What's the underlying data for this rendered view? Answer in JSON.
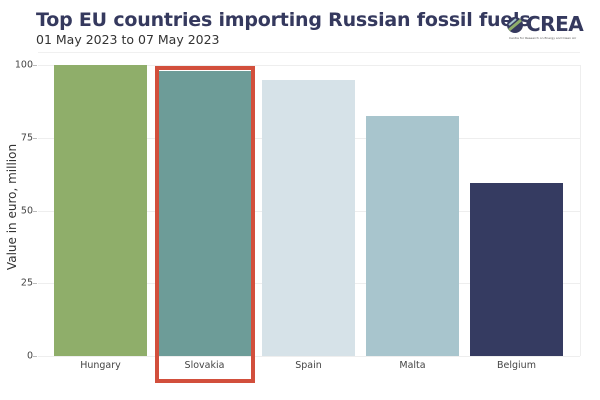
{
  "header": {
    "title": "Top EU countries importing Russian fossil fuels",
    "subtitle": "01 May 2023 to 07 May 2023",
    "logo_text": "CREA",
    "logo_subtext": "Centre for Research on Energy and Clean Air"
  },
  "axis": {
    "ylabel": "Value in euro, million",
    "yticks": [
      "0",
      "25",
      "50",
      "75",
      "100"
    ]
  },
  "highlight": {
    "country": "Slovakia",
    "color": "#d24f3c"
  },
  "chart_data": {
    "type": "bar",
    "title": "Top EU countries importing Russian fossil fuels",
    "subtitle": "01 May 2023 to 07 May 2023",
    "xlabel": "",
    "ylabel": "Value in euro, million",
    "categories": [
      "Hungary",
      "Slovakia",
      "Spain",
      "Malta",
      "Belgium"
    ],
    "values": [
      100,
      98,
      95,
      82.5,
      59.5
    ],
    "colors": [
      "#8fae6a",
      "#6d9c98",
      "#d6e2e8",
      "#a8c5cd",
      "#353b61"
    ],
    "ylim": [
      0,
      100
    ],
    "yticks": [
      0,
      25,
      50,
      75,
      100
    ],
    "grid": true,
    "legend": null,
    "annotations": [
      "Red rectangle highlighting Slovakia bar"
    ]
  }
}
